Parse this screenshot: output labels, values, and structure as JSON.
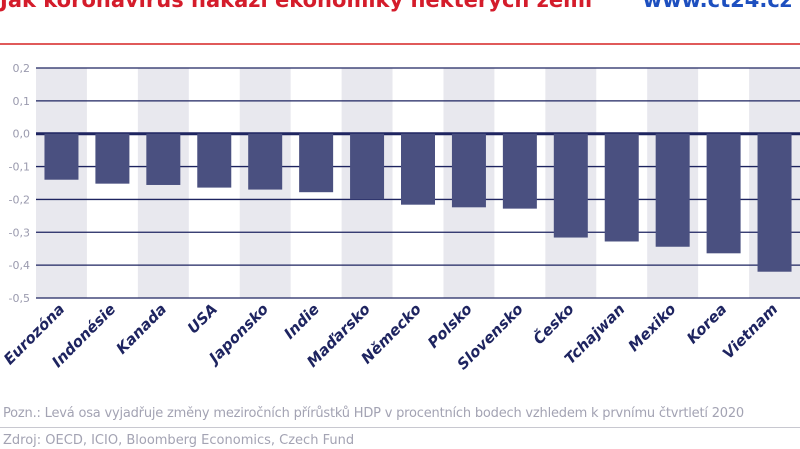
{
  "header": {
    "title": "Jak koronavirus nakazí ekonomiky některých zemí",
    "brand": "www.ct24.cz"
  },
  "colors": {
    "bar": "#4a5080",
    "band": "#e8e8ee",
    "grid": "#1e2460",
    "title": "#d41c2b",
    "brand": "#1d4fbf"
  },
  "chart_data": {
    "type": "bar",
    "title": "Jak koronavirus nakazí ekonomiky některých zemí",
    "xlabel": "",
    "ylabel": "",
    "ylim": [
      -0.5,
      0.2
    ],
    "yticks": [
      "0,2",
      "0,1",
      "0,0",
      "-0,1",
      "-0,2",
      "-0,3",
      "-0,4",
      "-0,5"
    ],
    "ytick_values": [
      0.2,
      0.1,
      0.0,
      -0.1,
      -0.2,
      -0.3,
      -0.4,
      -0.5
    ],
    "grid": true,
    "categories": [
      "Eurozóna",
      "Indonésie",
      "Kanada",
      "USA",
      "Japonsko",
      "Indie",
      "Maďarsko",
      "Německo",
      "Polsko",
      "Slovensko",
      "Česko",
      "Tchajwan",
      "Mexiko",
      "Korea",
      "Vietnam"
    ],
    "values": [
      -0.14,
      -0.152,
      -0.156,
      -0.164,
      -0.17,
      -0.178,
      -0.2,
      -0.216,
      -0.224,
      -0.228,
      -0.316,
      -0.328,
      -0.344,
      -0.364,
      -0.42
    ]
  },
  "footer": {
    "note": "Pozn.: Levá osa vyjadřuje změny meziročních přírůstků HDP v procentních bodech vzhledem k prvnímu čtvrtletí 2020",
    "source": "Zdroj: OECD, ICIO, Bloomberg Economics, Czech Fund"
  }
}
